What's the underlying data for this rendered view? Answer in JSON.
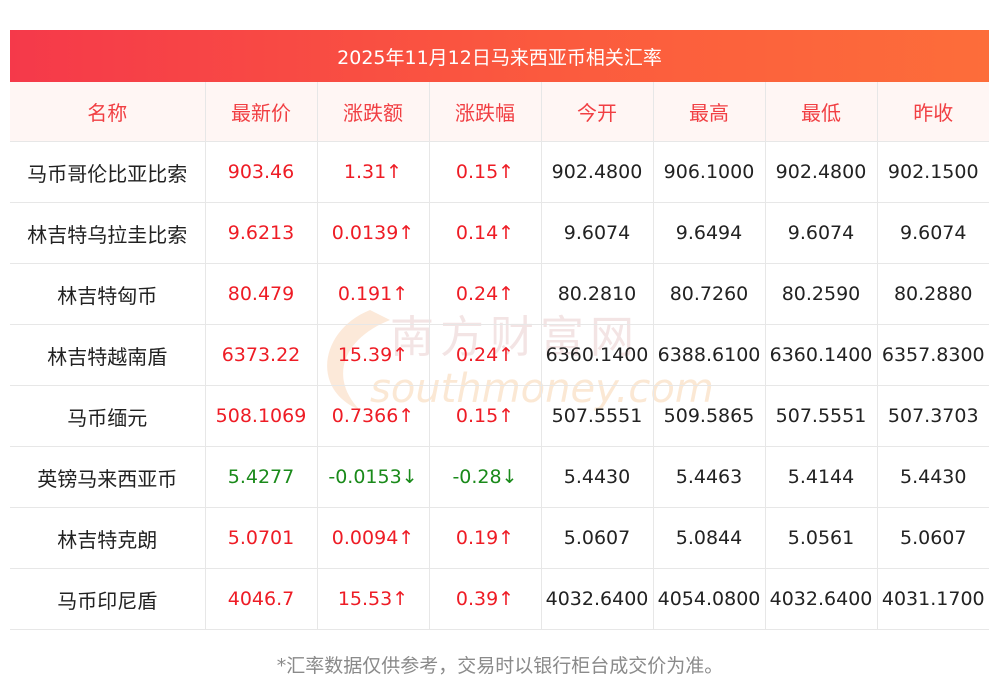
{
  "title": "2025年11月12日马来西亚币相关汇率",
  "colors": {
    "up": "#ee1c25",
    "down": "#1a8a1a",
    "header_text": "#f13f43",
    "banner": "#f5394a"
  },
  "table": {
    "headers": [
      "名称",
      "最新价",
      "涨跌额",
      "涨跌幅",
      "今开",
      "最高",
      "最低",
      "昨收"
    ],
    "rows": [
      {
        "dir": "up",
        "cells": [
          "马币哥伦比亚比索",
          "903.46",
          "1.31↑",
          "0.15↑",
          "902.4800",
          "906.1000",
          "902.4800",
          "902.1500"
        ]
      },
      {
        "dir": "up",
        "cells": [
          "林吉特乌拉圭比索",
          "9.6213",
          "0.0139↑",
          "0.14↑",
          "9.6074",
          "9.6494",
          "9.6074",
          "9.6074"
        ]
      },
      {
        "dir": "up",
        "cells": [
          "林吉特匈币",
          "80.479",
          "0.191↑",
          "0.24↑",
          "80.2810",
          "80.7260",
          "80.2590",
          "80.2880"
        ]
      },
      {
        "dir": "up",
        "cells": [
          "林吉特越南盾",
          "6373.22",
          "15.39↑",
          "0.24↑",
          "6360.1400",
          "6388.6100",
          "6360.1400",
          "6357.8300"
        ]
      },
      {
        "dir": "up",
        "cells": [
          "马币缅元",
          "508.1069",
          "0.7366↑",
          "0.15↑",
          "507.5551",
          "509.5865",
          "507.5551",
          "507.3703"
        ]
      },
      {
        "dir": "down",
        "cells": [
          "英镑马来西亚币",
          "5.4277",
          "-0.0153↓",
          "-0.28↓",
          "5.4430",
          "5.4463",
          "5.4144",
          "5.4430"
        ]
      },
      {
        "dir": "up",
        "cells": [
          "林吉特克朗",
          "5.0701",
          "0.0094↑",
          "0.19↑",
          "5.0607",
          "5.0844",
          "5.0561",
          "5.0607"
        ]
      },
      {
        "dir": "up",
        "cells": [
          "马币印尼盾",
          "4046.7",
          "15.53↑",
          "0.39↑",
          "4032.6400",
          "4054.0800",
          "4032.6400",
          "4031.1700"
        ]
      }
    ]
  },
  "watermark": {
    "cn": "南方财富网",
    "en": "southmoney.com"
  },
  "footnote": "*汇率数据仅供参考，交易时以银行柜台成交价为准。"
}
